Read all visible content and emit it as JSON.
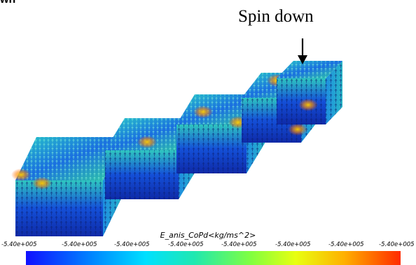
{
  "top_label": "wn",
  "annotation": {
    "text": "Spin down"
  },
  "colorbar": {
    "title": "E_anis_CoPd<kg/ms^2>",
    "ticks": [
      "-5.40e+005",
      "-5.40e+005",
      "-5.40e+005",
      "-5.40e+005",
      "-5.40e+005",
      "-5.40e+005",
      "-5.40e+005",
      "-5.40e+005"
    ],
    "colors": [
      "#1010ff",
      "#0088ff",
      "#00e0ff",
      "#80ff40",
      "#e8ff10",
      "#ffb000",
      "#ff2a00"
    ]
  },
  "cubes": {
    "count": 5,
    "spin_state_of_last": "Spin down"
  }
}
